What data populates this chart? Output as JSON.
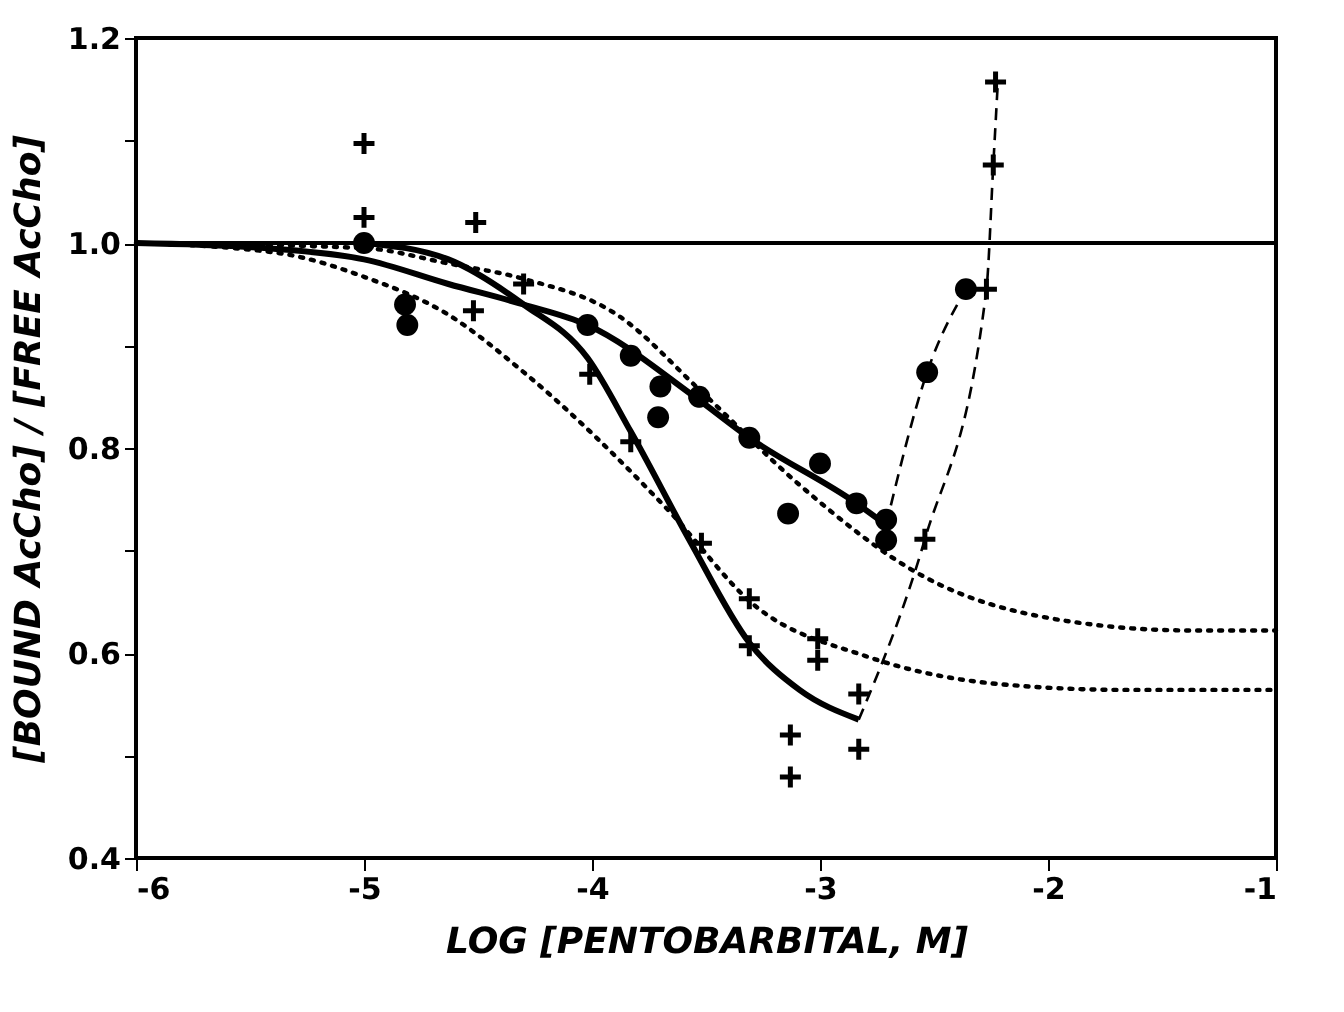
{
  "chart_data": {
    "type": "scatter",
    "xlabel": "LOG [PENTOBARBITAL, M]",
    "ylabel": "[BOUND AcCho] / [FREE AcCho]",
    "xlim": [
      -6,
      -1
    ],
    "xticks": [
      -6,
      -5,
      -4,
      -3,
      -2,
      -1
    ],
    "ylim": [
      0.4,
      1.2
    ],
    "yticks": [
      0.4,
      {
        "value": 0.5,
        "label": null
      },
      0.6,
      {
        "value": 0.7,
        "label": null
      },
      0.8,
      {
        "value": 0.9,
        "label": null
      },
      {
        "value": 1.0,
        "label": "1.0"
      },
      {
        "value": 1.1,
        "label": null
      },
      1.2
    ],
    "grid": false,
    "ref_lines": [
      {
        "axis": "y",
        "value": 1.0,
        "color": "#000000",
        "line_style": "solid"
      }
    ],
    "series": [
      {
        "type": "line",
        "color": "#000000",
        "line_style": "dotted",
        "marker": "none",
        "x": [
          -6,
          -5,
          -4.63,
          -4.3,
          -3.89,
          -3.52,
          -3.09,
          -2.54,
          -1.94,
          -1.38,
          -1.0
        ],
        "values": [
          1.0,
          0.995,
          0.98,
          0.965,
          0.93,
          0.855,
          0.764,
          0.674,
          0.632,
          0.622,
          0.622
        ]
      },
      {
        "type": "line",
        "color": "#000000",
        "line_style": "dotted",
        "marker": "none",
        "x": [
          -6,
          -5.37,
          -5.0,
          -4.63,
          -4.3,
          -3.66,
          -3.29,
          -2.8,
          -2.23,
          -1.66,
          -1.0
        ],
        "values": [
          1.0,
          0.99,
          0.967,
          0.93,
          0.874,
          0.738,
          0.647,
          0.597,
          0.57,
          0.564,
          0.564
        ]
      },
      {
        "type": "line",
        "color": "#000000",
        "line_style": "solid",
        "marker": "none",
        "x": [
          -6,
          -5.37,
          -5.0,
          -4.63,
          -4.3,
          -4.02,
          -3.55,
          -3.31,
          -2.84,
          -2.71
        ],
        "values": [
          1.0,
          0.994,
          0.984,
          0.96,
          0.94,
          0.92,
          0.85,
          0.81,
          0.746,
          0.725
        ]
      },
      {
        "type": "line",
        "color": "#000000",
        "line_style": "solid",
        "marker": "none",
        "x": [
          -5.0,
          -4.63,
          -4.3,
          -4.02,
          -3.83,
          -3.57,
          -3.31,
          -3.09,
          -2.83
        ],
        "values": [
          1.0,
          0.984,
          0.94,
          0.888,
          0.816,
          0.709,
          0.61,
          0.564,
          0.535
        ]
      },
      {
        "type": "line",
        "color": "#000000",
        "line_style": "dashed",
        "marker": "none",
        "x": [
          -2.71,
          -2.53,
          -2.36
        ],
        "values": [
          0.725,
          0.874,
          0.955
        ]
      },
      {
        "type": "line",
        "color": "#000000",
        "line_style": "dashed",
        "marker": "none",
        "x": [
          -2.83,
          -2.54,
          -2.27,
          -2.24,
          -2.22
        ],
        "values": [
          0.535,
          0.711,
          0.955,
          1.076,
          1.157
        ]
      },
      {
        "color": "#000000",
        "marker": "circle",
        "x": [
          -5.0,
          -4.82,
          -4.81,
          -4.02,
          -3.83,
          -3.7,
          -3.71,
          -3.53,
          -3.31,
          -3.0,
          -3.14,
          -2.84,
          -2.71,
          -2.71,
          -2.53,
          -2.36
        ],
        "values": [
          1.0,
          0.94,
          0.92,
          0.92,
          0.89,
          0.86,
          0.83,
          0.85,
          0.81,
          0.785,
          0.736,
          0.746,
          0.73,
          0.71,
          0.874,
          0.955
        ]
      },
      {
        "color": "#000000",
        "marker": "cross",
        "x": [
          -5.0,
          -5.0,
          -4.51,
          -4.52,
          -4.3,
          -4.01,
          -3.83,
          -3.53,
          -3.52,
          -3.31,
          -3.31,
          -3.01,
          -3.01,
          -3.13,
          -3.13,
          -2.83,
          -2.83,
          -2.54,
          -2.27,
          -2.24,
          -2.23
        ],
        "values": [
          1.097,
          1.025,
          1.02,
          0.934,
          0.96,
          0.872,
          0.806,
          0.85,
          0.707,
          0.653,
          0.607,
          0.614,
          0.593,
          0.52,
          0.479,
          0.56,
          0.506,
          0.711,
          0.955,
          1.076,
          1.157
        ]
      }
    ]
  }
}
